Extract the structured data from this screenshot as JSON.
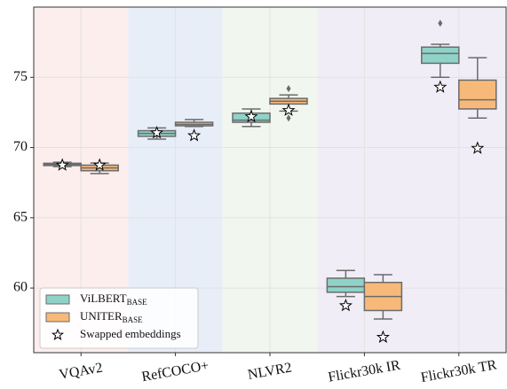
{
  "chart_data": {
    "type": "box",
    "categories": [
      "VQAv2",
      "RefCOCO+",
      "NLVR2",
      "Flickr30k IR",
      "Flickr30k TR"
    ],
    "band_colors": [
      "#fdeeee",
      "#e8eef8",
      "#f1f7ee",
      "#f1edf7",
      "#f1edf7"
    ],
    "ylim": [
      55.4,
      80
    ],
    "yticks": [
      60,
      65,
      70,
      75
    ],
    "grid": true,
    "legend": "lower left",
    "swapped_label": "Swapped embeddings",
    "series": [
      {
        "name": "ViLBERT",
        "subscript": "BASE",
        "color": "#8fd3c8",
        "boxes": [
          {
            "min": 68.65,
            "q1": 68.72,
            "median": 68.8,
            "q3": 68.88,
            "max": 68.95,
            "outliers": []
          },
          {
            "min": 70.6,
            "q1": 70.8,
            "median": 71.0,
            "q3": 71.2,
            "max": 71.4,
            "outliers": []
          },
          {
            "min": 71.5,
            "q1": 71.8,
            "median": 71.95,
            "q3": 72.45,
            "max": 72.75,
            "outliers": []
          },
          {
            "min": 59.4,
            "q1": 59.7,
            "median": 60.1,
            "q3": 60.7,
            "max": 61.25,
            "outliers": []
          },
          {
            "min": 75.0,
            "q1": 76.0,
            "median": 76.7,
            "q3": 77.15,
            "max": 77.35,
            "outliers": [
              78.85
            ]
          }
        ],
        "swapped": [
          68.75,
          71.05,
          72.2,
          58.75,
          74.3
        ]
      },
      {
        "name": "UNITER",
        "subscript": "BASE",
        "color": "#f7b97a",
        "boxes": [
          {
            "min": 68.15,
            "q1": 68.35,
            "median": 68.55,
            "q3": 68.75,
            "max": 68.9,
            "outliers": []
          },
          {
            "min": 71.5,
            "q1": 71.55,
            "median": 71.65,
            "q3": 71.8,
            "max": 72.0,
            "outliers": []
          },
          {
            "min": 72.6,
            "q1": 73.1,
            "median": 73.3,
            "q3": 73.5,
            "max": 73.75,
            "outliers": [
              74.2,
              72.1
            ]
          },
          {
            "min": 57.8,
            "q1": 58.4,
            "median": 59.4,
            "q3": 60.4,
            "max": 60.95,
            "outliers": []
          },
          {
            "min": 72.1,
            "q1": 72.75,
            "median": 73.4,
            "q3": 74.8,
            "max": 76.4,
            "outliers": []
          }
        ],
        "swapped": [
          68.75,
          70.85,
          72.65,
          56.5,
          69.95
        ]
      }
    ]
  }
}
